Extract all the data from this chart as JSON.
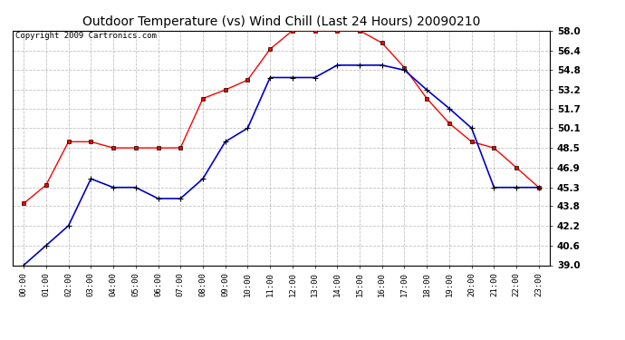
{
  "title": "Outdoor Temperature (vs) Wind Chill (Last 24 Hours) 20090210",
  "copyright": "Copyright 2009 Cartronics.com",
  "x_labels": [
    "00:00",
    "01:00",
    "02:00",
    "03:00",
    "04:00",
    "05:00",
    "06:00",
    "07:00",
    "08:00",
    "09:00",
    "10:00",
    "11:00",
    "12:00",
    "13:00",
    "14:00",
    "15:00",
    "16:00",
    "17:00",
    "18:00",
    "19:00",
    "20:00",
    "21:00",
    "22:00",
    "23:00"
  ],
  "temp_red": [
    44.0,
    45.5,
    49.0,
    49.0,
    48.5,
    48.5,
    48.5,
    48.5,
    52.5,
    53.2,
    54.0,
    56.5,
    58.0,
    58.0,
    58.0,
    58.0,
    57.0,
    55.0,
    52.5,
    50.5,
    49.0,
    48.5,
    46.9,
    45.3
  ],
  "temp_blue": [
    39.0,
    40.6,
    42.2,
    46.0,
    45.3,
    45.3,
    44.4,
    44.4,
    46.0,
    49.0,
    50.1,
    54.2,
    54.2,
    54.2,
    55.2,
    55.2,
    55.2,
    54.8,
    53.2,
    51.7,
    50.1,
    45.3,
    45.3,
    45.3
  ],
  "ylim_min": 39.0,
  "ylim_max": 58.0,
  "yticks": [
    39.0,
    40.6,
    42.2,
    43.8,
    45.3,
    46.9,
    48.5,
    50.1,
    51.7,
    53.2,
    54.8,
    56.4,
    58.0
  ],
  "color_red": "#ff0000",
  "color_blue": "#0000cc",
  "bg_color": "#ffffff",
  "grid_color": "#bbbbbb",
  "title_fontsize": 10,
  "copyright_fontsize": 6.5
}
